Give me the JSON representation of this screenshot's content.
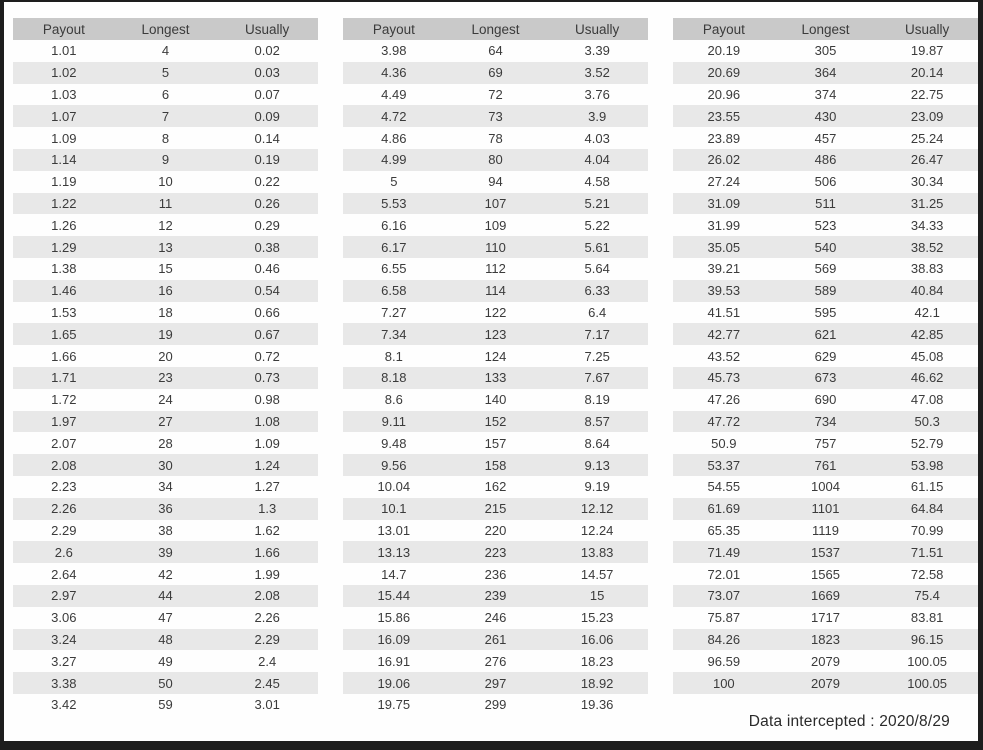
{
  "columns": [
    "Payout",
    "Longest",
    "Usually"
  ],
  "footer": {
    "note": "Data intercepted : 2020/8/29"
  },
  "colors": {
    "frame": "#1d1d1d",
    "header_bg": "#c9c9c9",
    "stripe_bg": "#e8e8e8",
    "text": "#3b3b3b"
  },
  "tables": [
    {
      "name": "payout-table-1",
      "rows": [
        [
          "1.01",
          "4",
          "0.02"
        ],
        [
          "1.02",
          "5",
          "0.03"
        ],
        [
          "1.03",
          "6",
          "0.07"
        ],
        [
          "1.07",
          "7",
          "0.09"
        ],
        [
          "1.09",
          "8",
          "0.14"
        ],
        [
          "1.14",
          "9",
          "0.19"
        ],
        [
          "1.19",
          "10",
          "0.22"
        ],
        [
          "1.22",
          "11",
          "0.26"
        ],
        [
          "1.26",
          "12",
          "0.29"
        ],
        [
          "1.29",
          "13",
          "0.38"
        ],
        [
          "1.38",
          "15",
          "0.46"
        ],
        [
          "1.46",
          "16",
          "0.54"
        ],
        [
          "1.53",
          "18",
          "0.66"
        ],
        [
          "1.65",
          "19",
          "0.67"
        ],
        [
          "1.66",
          "20",
          "0.72"
        ],
        [
          "1.71",
          "23",
          "0.73"
        ],
        [
          "1.72",
          "24",
          "0.98"
        ],
        [
          "1.97",
          "27",
          "1.08"
        ],
        [
          "2.07",
          "28",
          "1.09"
        ],
        [
          "2.08",
          "30",
          "1.24"
        ],
        [
          "2.23",
          "34",
          "1.27"
        ],
        [
          "2.26",
          "36",
          "1.3"
        ],
        [
          "2.29",
          "38",
          "1.62"
        ],
        [
          "2.6",
          "39",
          "1.66"
        ],
        [
          "2.64",
          "42",
          "1.99"
        ],
        [
          "2.97",
          "44",
          "2.08"
        ],
        [
          "3.06",
          "47",
          "2.26"
        ],
        [
          "3.24",
          "48",
          "2.29"
        ],
        [
          "3.27",
          "49",
          "2.4"
        ],
        [
          "3.38",
          "50",
          "2.45"
        ],
        [
          "3.42",
          "59",
          "3.01"
        ]
      ]
    },
    {
      "name": "payout-table-2",
      "rows": [
        [
          "3.98",
          "64",
          "3.39"
        ],
        [
          "4.36",
          "69",
          "3.52"
        ],
        [
          "4.49",
          "72",
          "3.76"
        ],
        [
          "4.72",
          "73",
          "3.9"
        ],
        [
          "4.86",
          "78",
          "4.03"
        ],
        [
          "4.99",
          "80",
          "4.04"
        ],
        [
          "5",
          "94",
          "4.58"
        ],
        [
          "5.53",
          "107",
          "5.21"
        ],
        [
          "6.16",
          "109",
          "5.22"
        ],
        [
          "6.17",
          "110",
          "5.61"
        ],
        [
          "6.55",
          "112",
          "5.64"
        ],
        [
          "6.58",
          "114",
          "6.33"
        ],
        [
          "7.27",
          "122",
          "6.4"
        ],
        [
          "7.34",
          "123",
          "7.17"
        ],
        [
          "8.1",
          "124",
          "7.25"
        ],
        [
          "8.18",
          "133",
          "7.67"
        ],
        [
          "8.6",
          "140",
          "8.19"
        ],
        [
          "9.11",
          "152",
          "8.57"
        ],
        [
          "9.48",
          "157",
          "8.64"
        ],
        [
          "9.56",
          "158",
          "9.13"
        ],
        [
          "10.04",
          "162",
          "9.19"
        ],
        [
          "10.1",
          "215",
          "12.12"
        ],
        [
          "13.01",
          "220",
          "12.24"
        ],
        [
          "13.13",
          "223",
          "13.83"
        ],
        [
          "14.7",
          "236",
          "14.57"
        ],
        [
          "15.44",
          "239",
          "15"
        ],
        [
          "15.86",
          "246",
          "15.23"
        ],
        [
          "16.09",
          "261",
          "16.06"
        ],
        [
          "16.91",
          "276",
          "18.23"
        ],
        [
          "19.06",
          "297",
          "18.92"
        ],
        [
          "19.75",
          "299",
          "19.36"
        ]
      ]
    },
    {
      "name": "payout-table-3",
      "rows": [
        [
          "20.19",
          "305",
          "19.87"
        ],
        [
          "20.69",
          "364",
          "20.14"
        ],
        [
          "20.96",
          "374",
          "22.75"
        ],
        [
          "23.55",
          "430",
          "23.09"
        ],
        [
          "23.89",
          "457",
          "25.24"
        ],
        [
          "26.02",
          "486",
          "26.47"
        ],
        [
          "27.24",
          "506",
          "30.34"
        ],
        [
          "31.09",
          "511",
          "31.25"
        ],
        [
          "31.99",
          "523",
          "34.33"
        ],
        [
          "35.05",
          "540",
          "38.52"
        ],
        [
          "39.21",
          "569",
          "38.83"
        ],
        [
          "39.53",
          "589",
          "40.84"
        ],
        [
          "41.51",
          "595",
          "42.1"
        ],
        [
          "42.77",
          "621",
          "42.85"
        ],
        [
          "43.52",
          "629",
          "45.08"
        ],
        [
          "45.73",
          "673",
          "46.62"
        ],
        [
          "47.26",
          "690",
          "47.08"
        ],
        [
          "47.72",
          "734",
          "50.3"
        ],
        [
          "50.9",
          "757",
          "52.79"
        ],
        [
          "53.37",
          "761",
          "53.98"
        ],
        [
          "54.55",
          "1004",
          "61.15"
        ],
        [
          "61.69",
          "1101",
          "64.84"
        ],
        [
          "65.35",
          "1119",
          "70.99"
        ],
        [
          "71.49",
          "1537",
          "71.51"
        ],
        [
          "72.01",
          "1565",
          "72.58"
        ],
        [
          "73.07",
          "1669",
          "75.4"
        ],
        [
          "75.87",
          "1717",
          "83.81"
        ],
        [
          "84.26",
          "1823",
          "96.15"
        ],
        [
          "96.59",
          "2079",
          "100.05"
        ],
        [
          "100",
          "2079",
          "100.05"
        ]
      ]
    }
  ]
}
